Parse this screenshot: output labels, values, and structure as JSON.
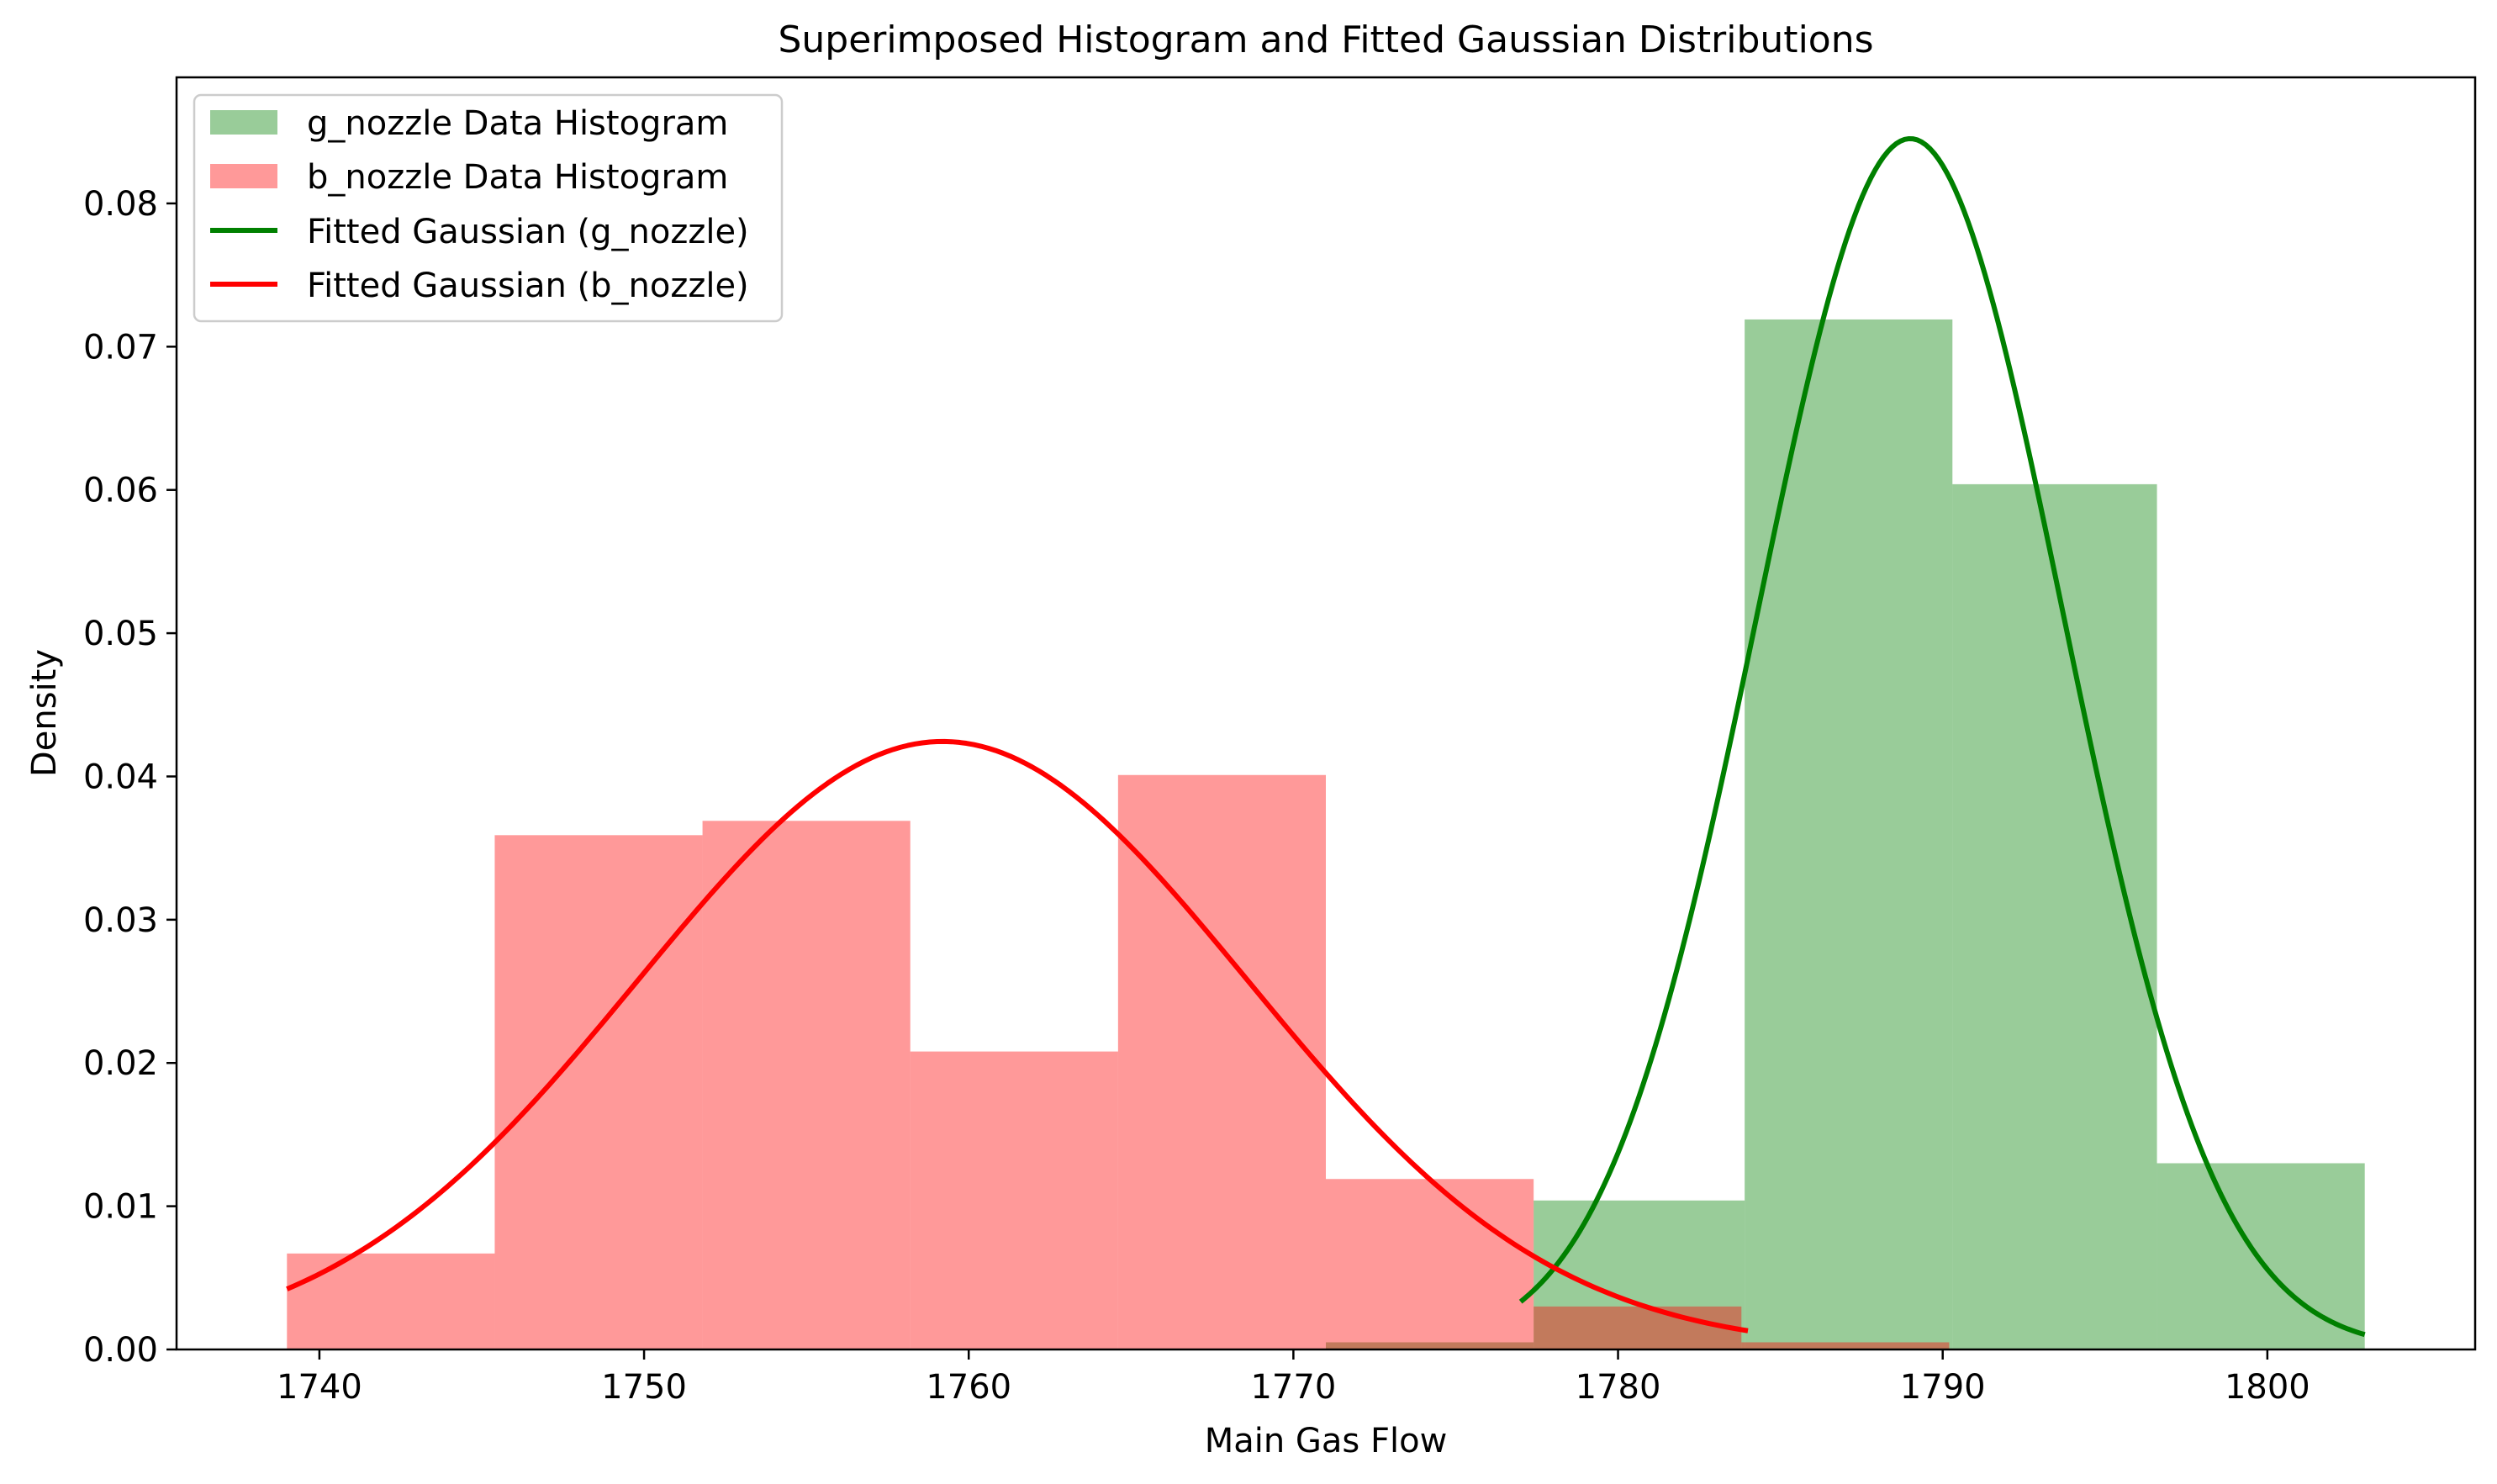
{
  "chart_data": {
    "type": "histogram",
    "title": "Superimposed Histogram and Fitted Gaussian Distributions",
    "xlabel": "Main Gas Flow",
    "ylabel": "Density",
    "xlim": [
      1735.6,
      1806.4
    ],
    "ylim": [
      0,
      0.0888
    ],
    "xticks": [
      1740,
      1750,
      1760,
      1770,
      1780,
      1790,
      1800
    ],
    "yticks": [
      0.0,
      0.01,
      0.02,
      0.03,
      0.04,
      0.05,
      0.06,
      0.07,
      0.08
    ],
    "xtick_labels": [
      "1740",
      "1750",
      "1760",
      "1770",
      "1780",
      "1790",
      "1800"
    ],
    "ytick_labels": [
      "0.00",
      "0.01",
      "0.02",
      "0.03",
      "0.04",
      "0.05",
      "0.06",
      "0.07",
      "0.08"
    ],
    "grid": false,
    "legend_position": "upper-left",
    "histograms": [
      {
        "name": "g_nozzle Data Histogram",
        "color": "#008000",
        "alpha": 0.4,
        "bins": [
          {
            "x0": 1771.0,
            "x1": 1777.4,
            "density": 0.0005
          },
          {
            "x0": 1777.4,
            "x1": 1783.9,
            "density": 0.0104
          },
          {
            "x0": 1783.9,
            "x1": 1790.3,
            "density": 0.0719
          },
          {
            "x0": 1790.3,
            "x1": 1796.6,
            "density": 0.0604
          },
          {
            "x0": 1796.6,
            "x1": 1803.0,
            "density": 0.013
          }
        ]
      },
      {
        "name": "b_nozzle Data Histogram",
        "color": "#ff0000",
        "alpha": 0.4,
        "bins": [
          {
            "x0": 1739.0,
            "x1": 1745.4,
            "density": 0.0067
          },
          {
            "x0": 1745.4,
            "x1": 1751.8,
            "density": 0.0359
          },
          {
            "x0": 1751.8,
            "x1": 1758.2,
            "density": 0.0369
          },
          {
            "x0": 1758.2,
            "x1": 1764.6,
            "density": 0.0208
          },
          {
            "x0": 1764.6,
            "x1": 1771.0,
            "density": 0.0401
          },
          {
            "x0": 1771.0,
            "x1": 1777.4,
            "density": 0.0119
          },
          {
            "x0": 1777.4,
            "x1": 1783.8,
            "density": 0.003
          },
          {
            "x0": 1783.8,
            "x1": 1790.2,
            "density": 0.0005
          }
        ]
      }
    ],
    "curves": [
      {
        "name": "Fitted Gaussian (g_nozzle)",
        "color": "#008000",
        "distribution": "normal",
        "mean": 1789.0,
        "std": 4.72,
        "x_range": [
          1777.0,
          1803.0
        ]
      },
      {
        "name": "Fitted Gaussian (b_nozzle)",
        "color": "#ff0000",
        "distribution": "normal",
        "mean": 1759.2,
        "std": 9.4,
        "x_range": [
          1739.0,
          1784.0
        ]
      }
    ]
  }
}
